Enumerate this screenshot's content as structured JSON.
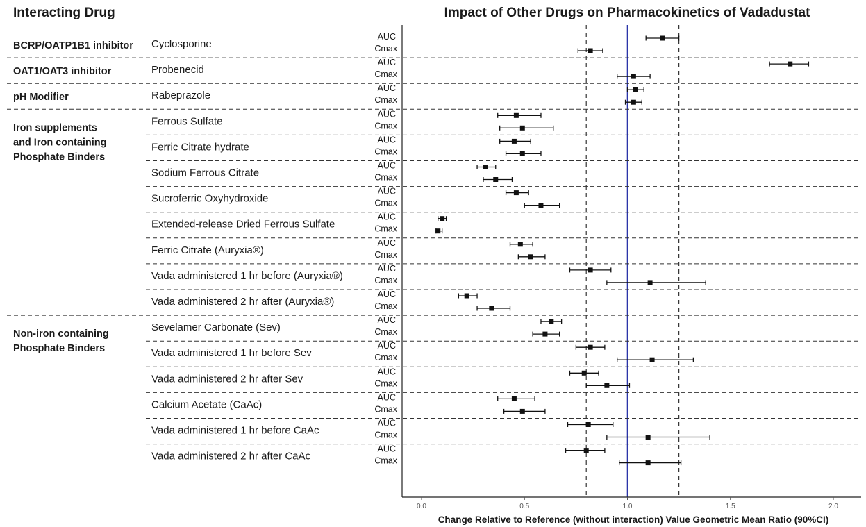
{
  "left_header": "Interacting Drug",
  "chart_data": {
    "type": "forest",
    "title": "Impact of Other Drugs on Pharmacokinetics of Vadadustat",
    "xlabel": "Change Relative to Reference (without interaction) Value Geometric Mean Ratio (90%CI)",
    "xlim": [
      0.0,
      2.0
    ],
    "xticks": [
      "0.0",
      "0.5",
      "1.0",
      "1.5",
      "2.0"
    ],
    "reference_line": 1.0,
    "bounds": [
      0.8,
      1.25
    ],
    "colors": {
      "reference": "#2b35a8",
      "points": "#111111"
    },
    "categories": [
      {
        "label": "BCRP/OATP1B1 inhibitor",
        "lines": [
          "BCRP/OATP1B1 inhibitor"
        ],
        "first_row": 0,
        "last_row": 0
      },
      {
        "label": "OAT1/OAT3 inhibitor",
        "lines": [
          "OAT1/OAT3 inhibitor"
        ],
        "first_row": 1,
        "last_row": 1
      },
      {
        "label": "pH Modifier",
        "lines": [
          "pH Modifier"
        ],
        "first_row": 2,
        "last_row": 2
      },
      {
        "label": "Iron supplements and Iron containing Phosphate Binders",
        "lines": [
          "Iron supplements",
          "and Iron containing",
          "Phosphate Binders"
        ],
        "first_row": 3,
        "last_row": 10
      },
      {
        "label": "Non-iron containing Phosphate Binders",
        "lines": [
          "Non-iron containing",
          "Phosphate Binders"
        ],
        "first_row": 11,
        "last_row": 16
      }
    ],
    "rows": [
      {
        "drug": "Cyclosporine",
        "auc": [
          1.17,
          1.09,
          1.25
        ],
        "cmax": [
          0.82,
          0.76,
          0.88
        ]
      },
      {
        "drug": "Probenecid",
        "auc": [
          1.79,
          1.69,
          1.88
        ],
        "cmax": [
          1.03,
          0.95,
          1.11
        ]
      },
      {
        "drug": "Rabeprazole",
        "auc": [
          1.04,
          1.0,
          1.08
        ],
        "cmax": [
          1.03,
          0.99,
          1.07
        ]
      },
      {
        "drug": "Ferrous Sulfate",
        "auc": [
          0.46,
          0.37,
          0.58
        ],
        "cmax": [
          0.49,
          0.38,
          0.64
        ]
      },
      {
        "drug": "Ferric Citrate hydrate",
        "auc": [
          0.45,
          0.38,
          0.53
        ],
        "cmax": [
          0.49,
          0.41,
          0.58
        ]
      },
      {
        "drug": "Sodium Ferrous Citrate",
        "auc": [
          0.31,
          0.27,
          0.36
        ],
        "cmax": [
          0.36,
          0.3,
          0.44
        ]
      },
      {
        "drug": "Sucroferric Oxyhydroxide",
        "auc": [
          0.46,
          0.41,
          0.52
        ],
        "cmax": [
          0.58,
          0.5,
          0.67
        ]
      },
      {
        "drug": "Extended-release Dried Ferrous Sulfate",
        "auc": [
          0.1,
          0.08,
          0.12
        ],
        "cmax": [
          0.08,
          0.07,
          0.1
        ]
      },
      {
        "drug": "Ferric Citrate (Auryxia®)",
        "auc": [
          0.48,
          0.43,
          0.54
        ],
        "cmax": [
          0.53,
          0.47,
          0.6
        ]
      },
      {
        "drug": "Vada administered 1 hr before (Auryxia®)",
        "auc": [
          0.82,
          0.72,
          0.92
        ],
        "cmax": [
          1.11,
          0.9,
          1.38
        ]
      },
      {
        "drug": "Vada administered 2 hr after (Auryxia®)",
        "auc": [
          0.22,
          0.18,
          0.27
        ],
        "cmax": [
          0.34,
          0.27,
          0.43
        ]
      },
      {
        "drug": "Sevelamer Carbonate (Sev)",
        "auc": [
          0.63,
          0.58,
          0.68
        ],
        "cmax": [
          0.6,
          0.54,
          0.67
        ]
      },
      {
        "drug": "Vada administered 1 hr before Sev",
        "auc": [
          0.82,
          0.75,
          0.89
        ],
        "cmax": [
          1.12,
          0.95,
          1.32
        ]
      },
      {
        "drug": "Vada administered 2 hr after Sev",
        "auc": [
          0.79,
          0.72,
          0.86
        ],
        "cmax": [
          0.9,
          0.8,
          1.01
        ]
      },
      {
        "drug": "Calcium Acetate (CaAc)",
        "auc": [
          0.45,
          0.37,
          0.55
        ],
        "cmax": [
          0.49,
          0.4,
          0.6
        ]
      },
      {
        "drug": "Vada administered 1 hr before CaAc",
        "auc": [
          0.81,
          0.71,
          0.93
        ],
        "cmax": [
          1.1,
          0.9,
          1.4
        ]
      },
      {
        "drug": "Vada administered 2 hr after CaAc",
        "auc": [
          0.8,
          0.7,
          0.89
        ],
        "cmax": [
          1.1,
          0.96,
          1.26
        ]
      }
    ]
  }
}
